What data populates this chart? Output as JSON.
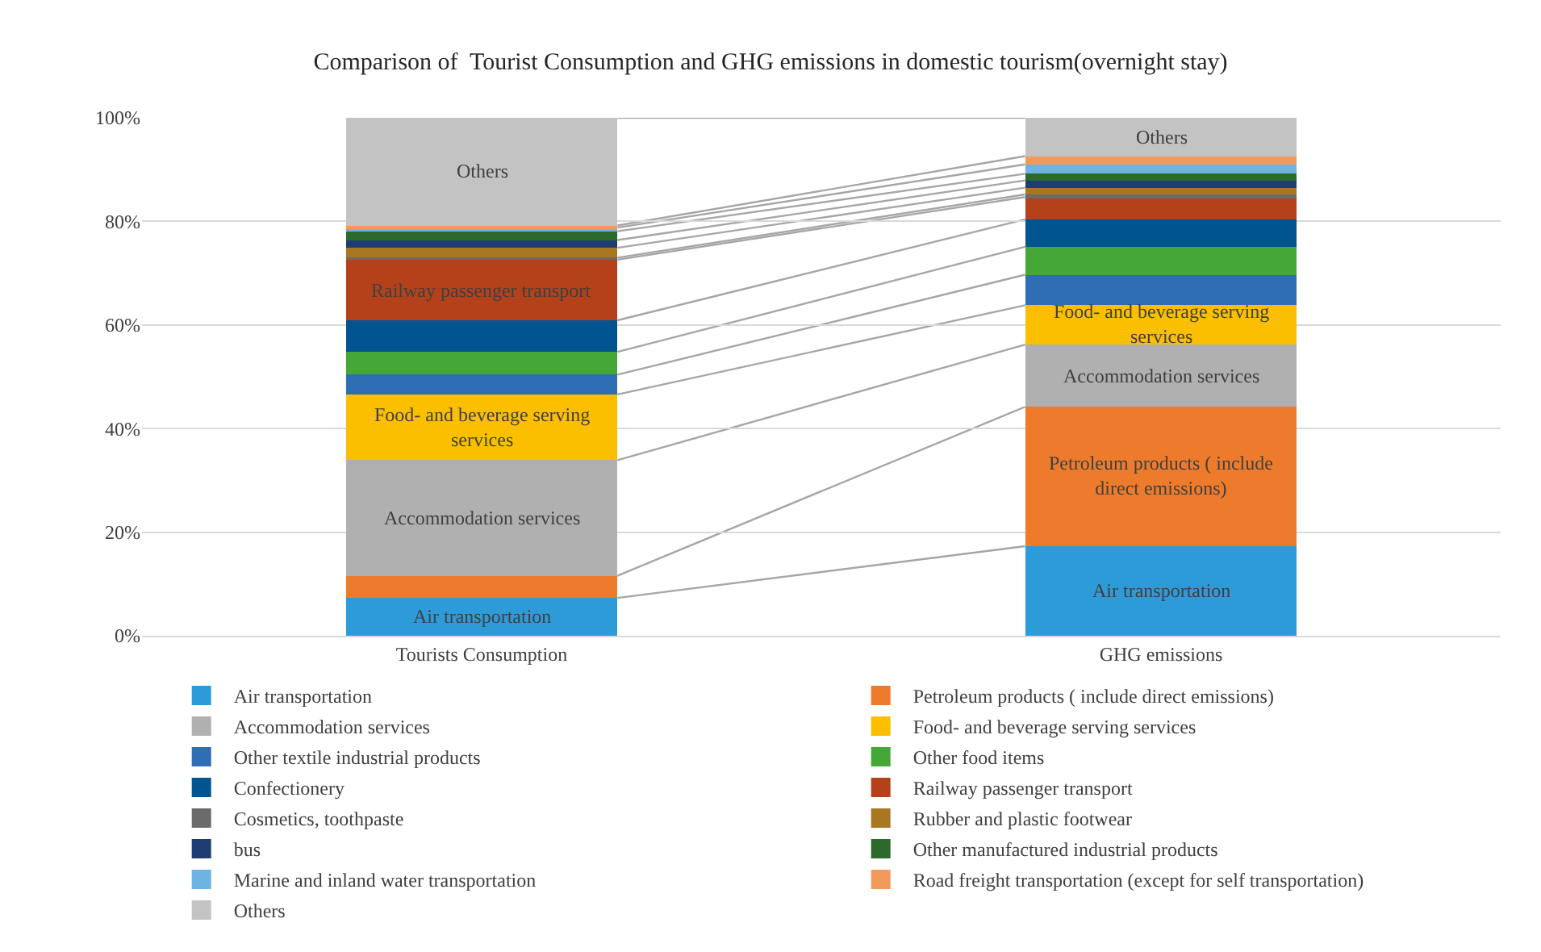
{
  "chart_data": {
    "type": "bar",
    "stacked": true,
    "title": "Comparison of  Tourist Consumption and GHG emissions in domestic tourism(overnight stay)",
    "categories": [
      "Tourists Consumption",
      "GHG emissions"
    ],
    "series": [
      {
        "name": "Air transportation",
        "color": "#2e9bd9",
        "values": [
          7.3,
          17.3
        ],
        "value_labels": [
          "Air transportation",
          "Air transportation"
        ]
      },
      {
        "name": "Petroleum products ( include direct emissions)",
        "color": "#ee7b2c",
        "values": [
          4.3,
          26.9
        ],
        "value_labels": [
          null,
          "Petroleum products ( include direct emissions)"
        ]
      },
      {
        "name": "Accommodation services",
        "color": "#b0b0b0",
        "values": [
          22.3,
          12.0
        ],
        "value_labels": [
          "Accommodation services",
          "Accommodation services"
        ]
      },
      {
        "name": "Food- and beverage serving services",
        "color": "#fbbf00",
        "values": [
          12.7,
          7.6
        ],
        "value_labels": [
          "Food- and beverage serving services",
          "Food- and beverage serving services"
        ]
      },
      {
        "name": "Other textile industrial products",
        "color": "#2f6db5",
        "values": [
          3.8,
          5.9
        ]
      },
      {
        "name": "Other food items",
        "color": "#45a737",
        "values": [
          4.4,
          5.4
        ]
      },
      {
        "name": "Confectionery",
        "color": "#00548f",
        "values": [
          6.1,
          5.3
        ]
      },
      {
        "name": "Railway passenger transport",
        "color": "#b5411b",
        "values": [
          11.7,
          4.3
        ],
        "value_labels": [
          "Railway passenger transport",
          null
        ]
      },
      {
        "name": "Cosmetics, toothpaste",
        "color": "#6b6b6b",
        "values": [
          0.4,
          0.5
        ]
      },
      {
        "name": "Rubber and plastic footwear",
        "color": "#a97720",
        "values": [
          1.9,
          1.3
        ]
      },
      {
        "name": "bus",
        "color": "#1f3c73",
        "values": [
          1.5,
          1.4
        ]
      },
      {
        "name": "Other manufactured industrial products",
        "color": "#2b6a2b",
        "values": [
          1.7,
          1.3
        ]
      },
      {
        "name": "Marine and inland water transportation",
        "color": "#6eb4e3",
        "values": [
          0.7,
          1.8
        ]
      },
      {
        "name": "Road freight transportation (except for self transportation)",
        "color": "#f39a5a",
        "values": [
          0.4,
          1.6
        ]
      },
      {
        "name": "Others",
        "color": "#c3c3c3",
        "values": [
          20.8,
          7.4
        ],
        "value_labels": [
          "Others",
          "Others"
        ]
      }
    ],
    "ylim": [
      0,
      100
    ],
    "yticks": [
      {
        "value": 0,
        "label": "0%"
      },
      {
        "value": 20,
        "label": "20%"
      },
      {
        "value": 40,
        "label": "40%"
      },
      {
        "value": 60,
        "label": "60%"
      },
      {
        "value": 80,
        "label": "80%"
      },
      {
        "value": 100,
        "label": "100%"
      }
    ],
    "grid": "y",
    "legend": "bottom"
  }
}
